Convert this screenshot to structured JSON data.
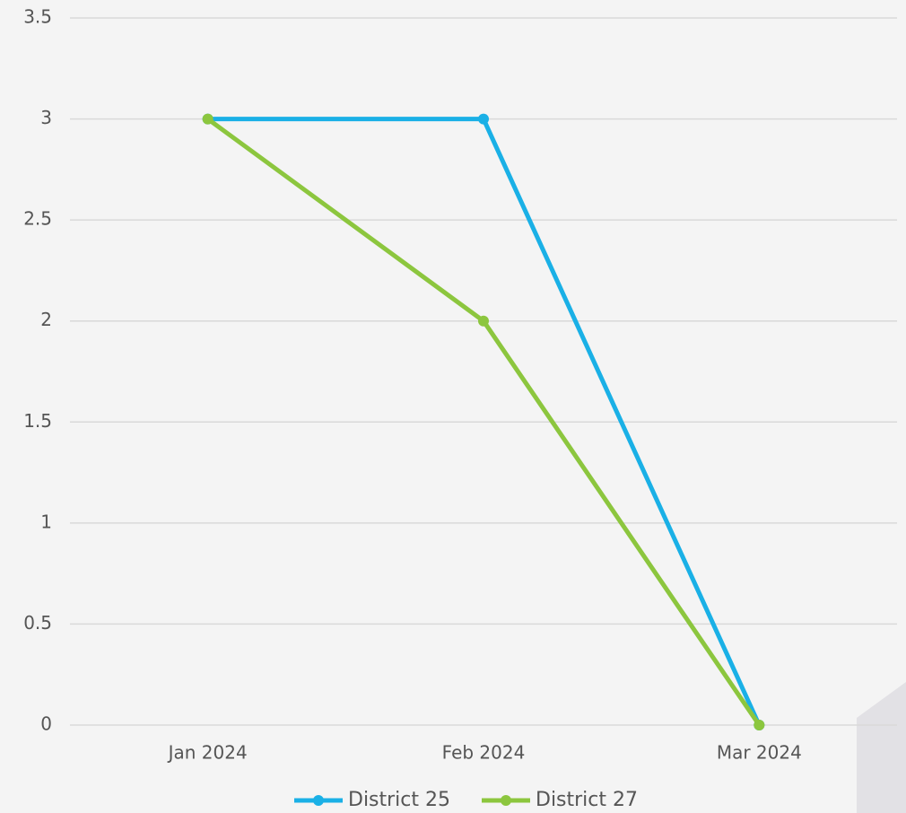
{
  "chart_data": {
    "type": "line",
    "categories": [
      "Jan 2024",
      "Feb 2024",
      "Mar 2024"
    ],
    "series": [
      {
        "name": "District 25",
        "color": "#1ab0e6",
        "values": [
          3,
          3,
          0
        ]
      },
      {
        "name": "District 27",
        "color": "#8cc63e",
        "values": [
          3,
          2,
          0
        ]
      }
    ],
    "ylim": [
      0,
      3.5
    ],
    "yticks": [
      0,
      0.5,
      1,
      1.5,
      2,
      2.5,
      3,
      3.5
    ],
    "grid": true,
    "legend": "bottom"
  }
}
